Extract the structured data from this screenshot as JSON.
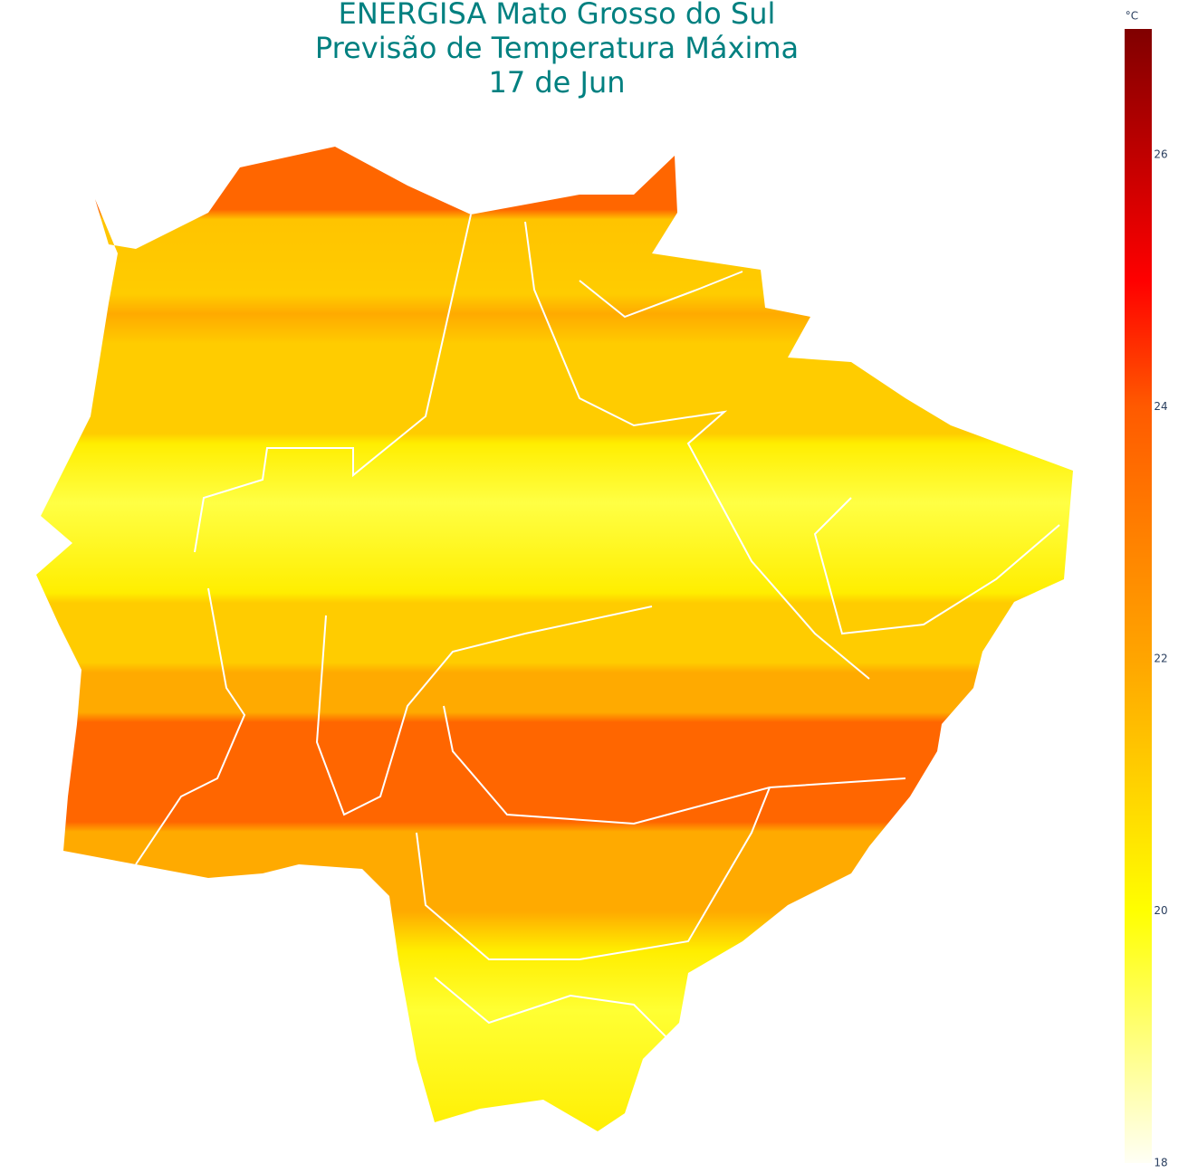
{
  "header": {
    "title_lines": [
      "ENERGISA Mato Grosso do Sul",
      "Previsão de Temperatura Máxima",
      "17 de Jun"
    ]
  },
  "colorbar": {
    "unit": "°C",
    "range": [
      18,
      27
    ],
    "ticks": [
      18,
      20,
      22,
      24,
      26
    ],
    "colorscale": [
      [
        18,
        "#fffff5"
      ],
      [
        20,
        "#ffff00"
      ],
      [
        22,
        "#ffa500"
      ],
      [
        24,
        "#ff5a00"
      ],
      [
        25,
        "#ff0000"
      ],
      [
        27,
        "#800000"
      ]
    ]
  }
}
